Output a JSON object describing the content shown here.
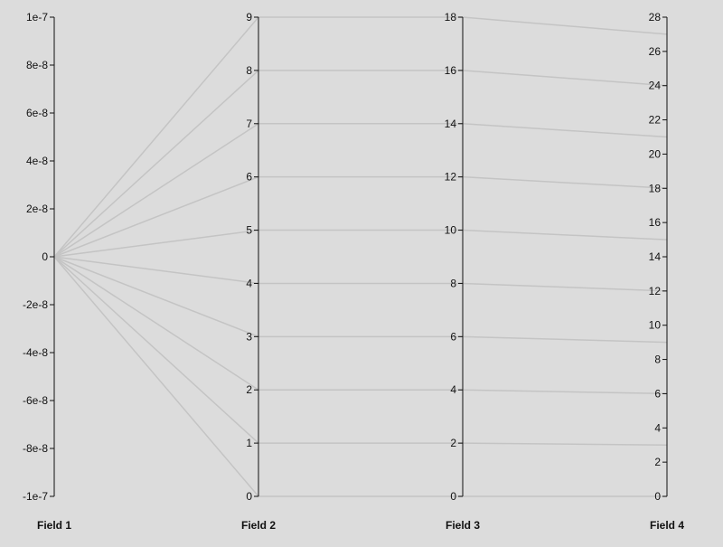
{
  "chart_data": {
    "type": "parallel-coordinates",
    "title": "",
    "grid": false,
    "axes": [
      {
        "name": "Field 1",
        "range": [
          -1e-07,
          1e-07
        ],
        "ticks": [
          -1e-07,
          -8e-08,
          -6e-08,
          -4e-08,
          -2e-08,
          0,
          2e-08,
          4e-08,
          6e-08,
          8e-08,
          1e-07
        ],
        "tick_labels": [
          "-1e-7",
          "-8e-8",
          "-6e-8",
          "-4e-8",
          "-2e-8",
          "0",
          "2e-8",
          "4e-8",
          "6e-8",
          "8e-8",
          "1e-7"
        ]
      },
      {
        "name": "Field 2",
        "range": [
          0,
          9
        ],
        "ticks": [
          0,
          1,
          2,
          3,
          4,
          5,
          6,
          7,
          8,
          9
        ],
        "tick_labels": [
          "0",
          "1",
          "2",
          "3",
          "4",
          "5",
          "6",
          "7",
          "8",
          "9"
        ]
      },
      {
        "name": "Field 3",
        "range": [
          0,
          18
        ],
        "ticks": [
          0,
          2,
          4,
          6,
          8,
          10,
          12,
          14,
          16,
          18
        ],
        "tick_labels": [
          "0",
          "2",
          "4",
          "6",
          "8",
          "10",
          "12",
          "14",
          "16",
          "18"
        ]
      },
      {
        "name": "Field 4",
        "range": [
          0,
          28
        ],
        "ticks": [
          0,
          2,
          4,
          6,
          8,
          10,
          12,
          14,
          16,
          18,
          20,
          22,
          24,
          26,
          28
        ],
        "tick_labels": [
          "0",
          "2",
          "4",
          "6",
          "8",
          "10",
          "12",
          "14",
          "16",
          "18",
          "20",
          "22",
          "24",
          "26",
          "28"
        ]
      }
    ],
    "records": [
      [
        0,
        0,
        0,
        0
      ],
      [
        0,
        1,
        2,
        3
      ],
      [
        0,
        2,
        4,
        6
      ],
      [
        0,
        3,
        6,
        9
      ],
      [
        0,
        4,
        8,
        12
      ],
      [
        0,
        5,
        10,
        15
      ],
      [
        0,
        6,
        12,
        18
      ],
      [
        0,
        7,
        14,
        21
      ],
      [
        0,
        8,
        16,
        24
      ],
      [
        0,
        9,
        18,
        27
      ]
    ],
    "colors": {
      "background": "#dcdcdc",
      "axis": "#111111",
      "line": "#c4c4c4"
    }
  }
}
